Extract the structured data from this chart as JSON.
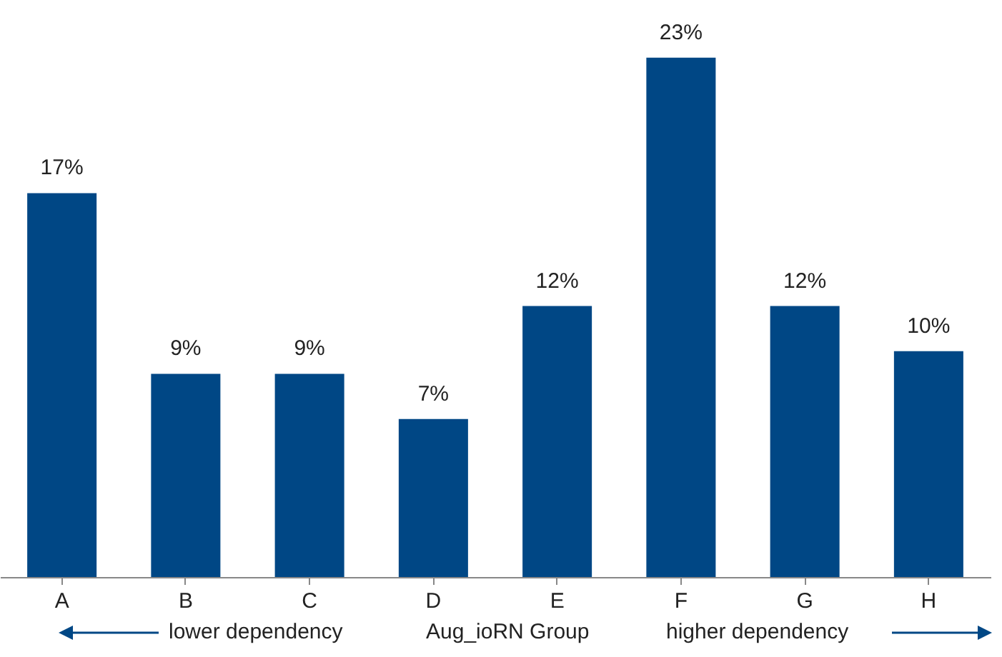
{
  "chart_data": {
    "type": "bar",
    "categories": [
      "A",
      "B",
      "C",
      "D",
      "E",
      "F",
      "G",
      "H"
    ],
    "values": [
      17,
      9,
      9,
      7,
      12,
      23,
      12,
      10
    ],
    "value_labels": [
      "17%",
      "9%",
      "9%",
      "7%",
      "12%",
      "23%",
      "12%",
      "10%"
    ],
    "color": "#004785",
    "annotations": [
      "lower dependency",
      "Aug_ioRN Group",
      "higher dependency"
    ]
  }
}
